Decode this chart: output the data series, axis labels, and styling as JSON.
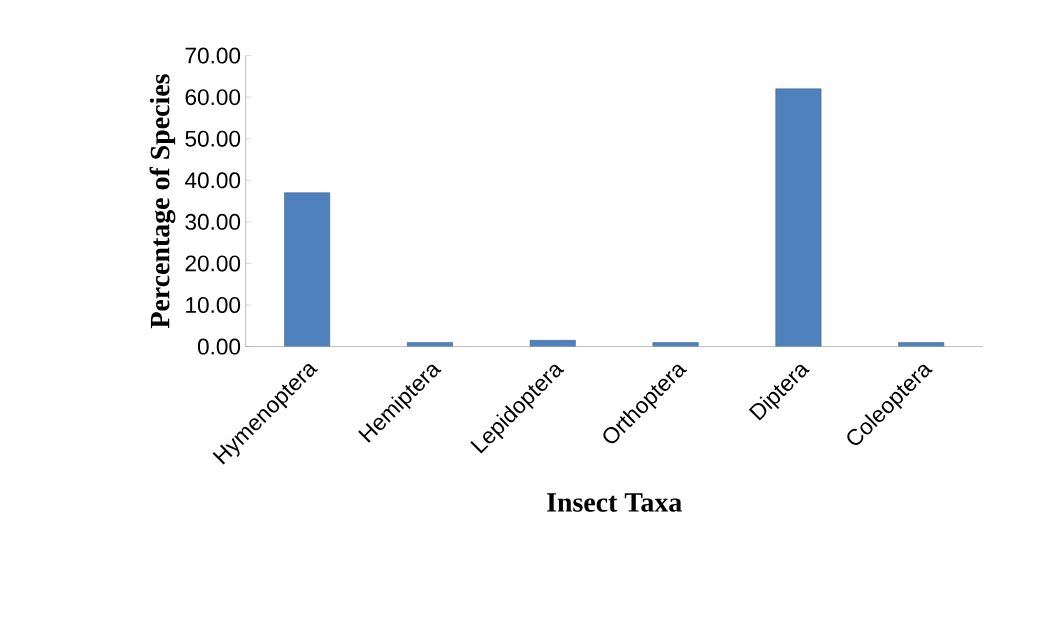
{
  "chart_data": {
    "type": "bar",
    "xlabel": "Insect Taxa",
    "ylabel": "Percentage of Species",
    "categories": [
      "Hymenoptera",
      "Hemiptera",
      "Lepidoptera",
      "Orthoptera",
      "Diptera",
      "Coleoptera"
    ],
    "values": [
      37,
      1,
      1.5,
      1,
      62,
      1
    ],
    "color": "#4f81bd",
    "ylim": [
      0,
      70
    ],
    "yticks": [
      {
        "value": 0,
        "label": "0.00"
      },
      {
        "value": 10,
        "label": "10.00"
      },
      {
        "value": 20,
        "label": "20.00"
      },
      {
        "value": 30,
        "label": "30.00"
      },
      {
        "value": 40,
        "label": "40.00"
      },
      {
        "value": 50,
        "label": "50.00"
      },
      {
        "value": 60,
        "label": "60.00"
      },
      {
        "value": 70,
        "label": "70.00"
      }
    ],
    "grid": false
  }
}
